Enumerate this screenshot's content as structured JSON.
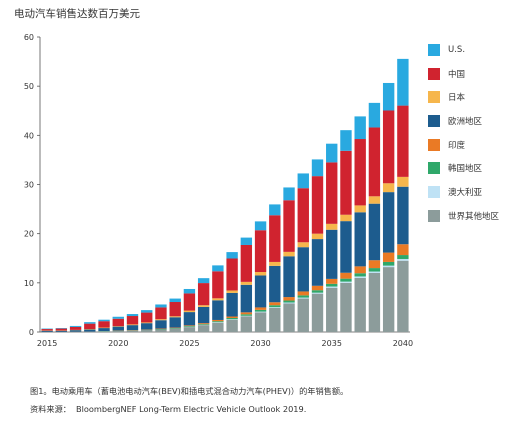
{
  "chart_title": "电动汽车销售达数百万美元",
  "caption": "图1。电动乘用车（蓄电池电动汽车(BEV)和插电式混合动力汽车(PHEV)）的年销售额。",
  "source_prefix": "资料来源：",
  "source_text": "BloombergNEF Long-Term Electric Vehicle Outlook 2019.",
  "colors": {
    "us": "#29a9e0",
    "china": "#d0232f",
    "japan": "#f6b64c",
    "europe": "#1d5c8e",
    "india": "#ea7a25",
    "korea": "#2fa86a",
    "australia": "#bfe2f5",
    "rest_of_world": "#8c9c9b"
  },
  "chart_data": {
    "type": "bar",
    "stacked": true,
    "title": "电动汽车销售达数百万美元",
    "xlabel": "",
    "ylabel": "",
    "ylim": [
      0,
      60
    ],
    "yticks": [
      0,
      10,
      20,
      30,
      40,
      50,
      60
    ],
    "xtick_labels": [
      "2015",
      "2020",
      "2025",
      "2030",
      "2035",
      "2040"
    ],
    "grid": false,
    "legend_position": "right",
    "categories": [
      2015,
      2016,
      2017,
      2018,
      2019,
      2020,
      2021,
      2022,
      2023,
      2024,
      2025,
      2026,
      2027,
      2028,
      2029,
      2030,
      2031,
      2032,
      2033,
      2034,
      2035,
      2036,
      2037,
      2038,
      2039,
      2040
    ],
    "series": [
      {
        "name": "世界其他地区",
        "color_key": "rest_of_world",
        "values": [
          0.05,
          0.05,
          0.08,
          0.1,
          0.15,
          0.2,
          0.3,
          0.4,
          0.5,
          0.7,
          1.0,
          1.4,
          1.9,
          2.5,
          3.2,
          4.0,
          4.9,
          5.8,
          6.8,
          7.8,
          9.0,
          10.0,
          11.0,
          12.0,
          13.2,
          14.5
        ]
      },
      {
        "name": "澳大利亚",
        "color_key": "australia",
        "values": [
          0.0,
          0.0,
          0.0,
          0.0,
          0.0,
          0.0,
          0.0,
          0.0,
          0.0,
          0.0,
          0.05,
          0.05,
          0.1,
          0.1,
          0.1,
          0.15,
          0.15,
          0.2,
          0.2,
          0.2,
          0.25,
          0.25,
          0.3,
          0.3,
          0.3,
          0.35
        ]
      },
      {
        "name": "韩国地区",
        "color_key": "korea",
        "values": [
          0.0,
          0.0,
          0.0,
          0.0,
          0.05,
          0.05,
          0.05,
          0.05,
          0.1,
          0.1,
          0.15,
          0.15,
          0.2,
          0.25,
          0.3,
          0.35,
          0.4,
          0.4,
          0.45,
          0.5,
          0.55,
          0.6,
          0.65,
          0.7,
          0.75,
          0.8
        ]
      },
      {
        "name": "印度",
        "color_key": "india",
        "values": [
          0.0,
          0.0,
          0.0,
          0.0,
          0.0,
          0.05,
          0.05,
          0.05,
          0.1,
          0.1,
          0.15,
          0.2,
          0.25,
          0.3,
          0.4,
          0.5,
          0.6,
          0.7,
          0.8,
          0.9,
          1.0,
          1.2,
          1.4,
          1.6,
          1.9,
          2.2
        ]
      },
      {
        "name": "欧洲地区",
        "color_key": "europe",
        "values": [
          0.2,
          0.2,
          0.3,
          0.4,
          0.6,
          0.8,
          1.0,
          1.3,
          1.7,
          2.1,
          2.7,
          3.3,
          4.0,
          4.8,
          5.6,
          6.5,
          7.4,
          8.3,
          9.0,
          9.5,
          10.0,
          10.5,
          11.0,
          11.5,
          12.3,
          11.7
        ]
      },
      {
        "name": "日本",
        "color_key": "japan",
        "values": [
          0.05,
          0.05,
          0.05,
          0.1,
          0.1,
          0.1,
          0.15,
          0.15,
          0.2,
          0.2,
          0.3,
          0.35,
          0.4,
          0.5,
          0.6,
          0.7,
          0.8,
          0.9,
          1.0,
          1.1,
          1.2,
          1.3,
          1.4,
          1.5,
          1.8,
          2.0
        ]
      },
      {
        "name": "中国",
        "color_key": "china",
        "values": [
          0.3,
          0.4,
          0.6,
          1.1,
          1.3,
          1.5,
          1.7,
          2.0,
          2.4,
          2.9,
          3.5,
          4.5,
          5.5,
          6.5,
          7.5,
          8.5,
          9.5,
          10.5,
          11.0,
          11.7,
          12.5,
          13.0,
          13.5,
          14.0,
          14.8,
          14.5
        ]
      },
      {
        "name": "U.S.",
        "color_key": "us",
        "values": [
          0.1,
          0.1,
          0.2,
          0.3,
          0.3,
          0.4,
          0.4,
          0.5,
          0.6,
          0.7,
          0.9,
          1.0,
          1.2,
          1.3,
          1.5,
          1.8,
          2.2,
          2.6,
          3.0,
          3.4,
          3.8,
          4.2,
          4.6,
          5.0,
          5.6,
          9.5
        ]
      }
    ],
    "legend_order": [
      "U.S.",
      "中国",
      "日本",
      "欧洲地区",
      "印度",
      "韩国地区",
      "澳大利亚",
      "世界其他地区"
    ]
  }
}
